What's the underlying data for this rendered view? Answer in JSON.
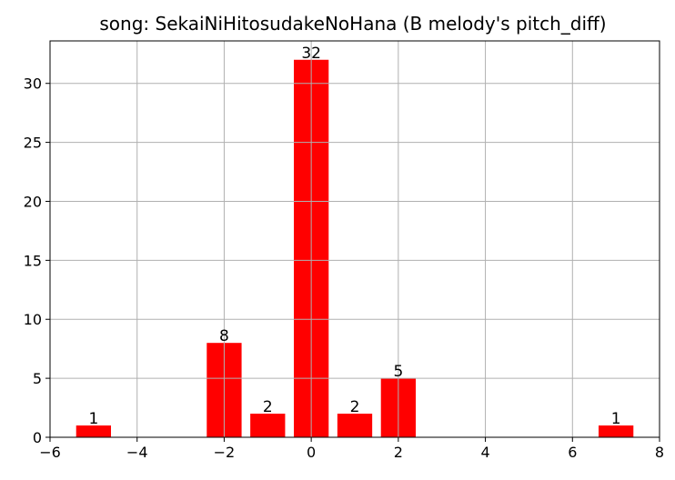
{
  "chart_data": {
    "type": "bar",
    "title": "song: SekaiNiHitosudakeNoHana (B melody's pitch_diff)",
    "xlabel": "",
    "ylabel": "",
    "x": [
      -5,
      -2,
      -1,
      0,
      1,
      2,
      7
    ],
    "values": [
      1,
      8,
      2,
      32,
      2,
      5,
      1
    ],
    "data_labels": [
      "1",
      "8",
      "2",
      "32",
      "2",
      "5",
      "1"
    ],
    "bar_width": 0.8,
    "bar_color": "#ff0000",
    "xlim": [
      -6,
      8
    ],
    "ylim": [
      0,
      33.6
    ],
    "xticks": [
      -6,
      -4,
      -2,
      0,
      2,
      4,
      6,
      8
    ],
    "xtick_labels": [
      "−6",
      "−4",
      "−2",
      "0",
      "2",
      "4",
      "6",
      "8"
    ],
    "yticks": [
      0,
      5,
      10,
      15,
      20,
      25,
      30
    ],
    "ytick_labels": [
      "0",
      "5",
      "10",
      "15",
      "20",
      "25",
      "30"
    ],
    "grid": true
  }
}
